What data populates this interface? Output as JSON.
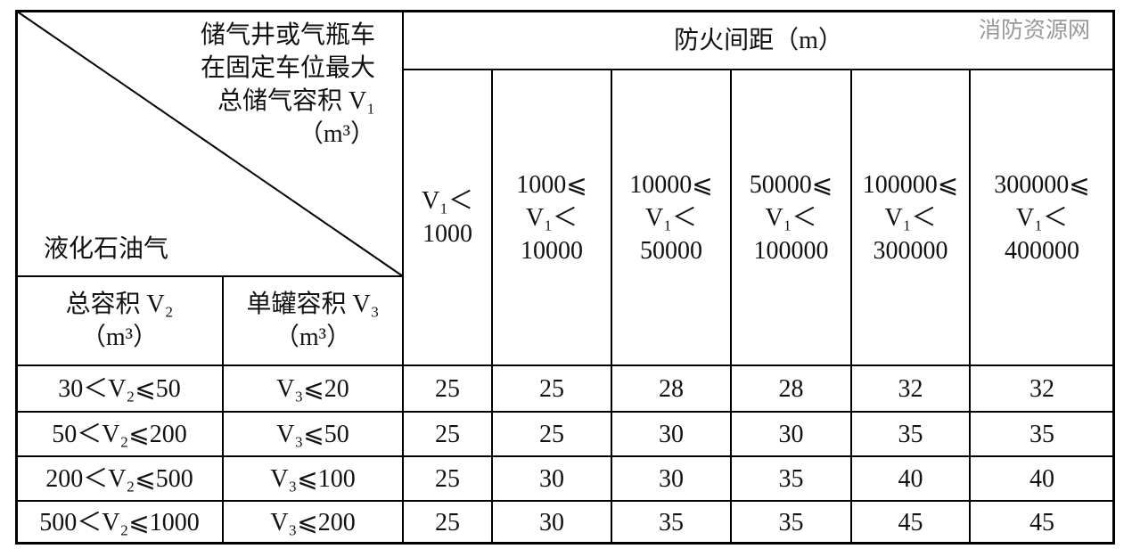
{
  "header": {
    "diagonal_top": [
      "储气井或气瓶车",
      "在固定车位最大",
      "总储气容积 V₁",
      "（m³）"
    ],
    "diagonal_bottom": "液化石油气",
    "spacing_title": "防火间距（m）",
    "total_volume": [
      "总容积 V₂",
      "（m³）"
    ],
    "single_tank_volume": [
      "单罐容积 V₃",
      "（m³）"
    ],
    "columns": [
      [
        "V₁＜",
        "1000"
      ],
      [
        "1000⩽",
        "V₁＜",
        "10000"
      ],
      [
        "10000⩽",
        "V₁＜",
        "50000"
      ],
      [
        "50000⩽",
        "V₁＜",
        "100000"
      ],
      [
        "100000⩽",
        "V₁＜",
        "300000"
      ],
      [
        "300000⩽",
        "V₁＜",
        "400000"
      ]
    ]
  },
  "table": {
    "rows": [
      [
        "30＜V₂⩽50",
        "V₃⩽20",
        "25",
        "25",
        "28",
        "28",
        "32",
        "32"
      ],
      [
        "50＜V₂⩽200",
        "V₃⩽50",
        "25",
        "25",
        "30",
        "30",
        "35",
        "35"
      ],
      [
        "200＜V₂⩽500",
        "V₃⩽100",
        "25",
        "30",
        "30",
        "35",
        "40",
        "40"
      ],
      [
        "500＜V₂⩽1000",
        "V₃⩽200",
        "25",
        "30",
        "35",
        "35",
        "45",
        "45"
      ]
    ]
  },
  "watermark": "消防资源网"
}
